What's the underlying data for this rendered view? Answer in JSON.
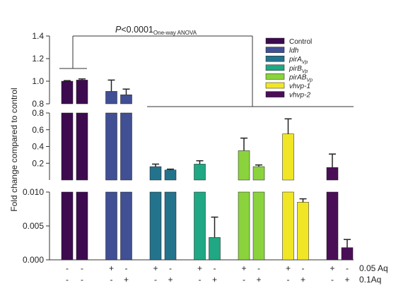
{
  "chart_data": {
    "type": "bar",
    "ylabel": "Fold change compared to control",
    "annotation": {
      "p": "P",
      "rest": "<0.0001",
      "test": "One-way ANOVA"
    },
    "y_axis_segments": [
      {
        "range": [
          0.8,
          1.4
        ],
        "ticks": [
          "0.8",
          "1.0",
          "1.2",
          "1.4"
        ]
      },
      {
        "range": [
          0.0,
          0.8
        ],
        "ticks": [
          "0.2",
          "0.4",
          "0.6",
          "0.8"
        ]
      },
      {
        "range": [
          0.0,
          0.01
        ],
        "ticks": [
          "0.000",
          "0.005",
          "0.010"
        ]
      }
    ],
    "series": [
      {
        "name": "Control",
        "sub": "",
        "color": "#3d0a4f"
      },
      {
        "name": "ldh",
        "sub": "",
        "color": "#414f94"
      },
      {
        "name": "pirA",
        "sub": "Vp",
        "color": "#24738d"
      },
      {
        "name": "pirB",
        "sub": "Vp",
        "color": "#1fa883"
      },
      {
        "name": "pirAB",
        "sub": "Vp",
        "color": "#8ad33d"
      },
      {
        "name": "vhvp-1",
        "sub": "",
        "color": "#f1e625"
      },
      {
        "name": "vhvp-2",
        "sub": "",
        "color": "#4a0e57"
      }
    ],
    "bars": [
      {
        "series": 0,
        "value": 1.0,
        "err": 0.005,
        "aq005": "-",
        "aq01": "-"
      },
      {
        "series": 0,
        "value": 1.01,
        "err": 0.01,
        "aq005": "-",
        "aq01": "-"
      },
      {
        "series": 1,
        "value": 0.91,
        "err": 0.1,
        "aq005": "+",
        "aq01": "-"
      },
      {
        "series": 1,
        "value": 0.88,
        "err": 0.05,
        "aq005": "-",
        "aq01": "+"
      },
      {
        "series": 2,
        "value": 0.16,
        "err": 0.03,
        "aq005": "+",
        "aq01": "-"
      },
      {
        "series": 2,
        "value": 0.12,
        "err": 0.01,
        "aq005": "-",
        "aq01": "+"
      },
      {
        "series": 3,
        "value": 0.19,
        "err": 0.04,
        "aq005": "+",
        "aq01": "-"
      },
      {
        "series": 3,
        "value": 0.0033,
        "err": 0.003,
        "aq005": "-",
        "aq01": "+"
      },
      {
        "series": 4,
        "value": 0.35,
        "err": 0.15,
        "aq005": "+",
        "aq01": "-"
      },
      {
        "series": 4,
        "value": 0.16,
        "err": 0.02,
        "aq005": "-",
        "aq01": "+"
      },
      {
        "series": 5,
        "value": 0.55,
        "err": 0.18,
        "aq005": "+",
        "aq01": "-"
      },
      {
        "series": 5,
        "value": 0.0085,
        "err": 0.0005,
        "aq005": "-",
        "aq01": "+"
      },
      {
        "series": 6,
        "value": 0.15,
        "err": 0.16,
        "aq005": "+",
        "aq01": "-"
      },
      {
        "series": 6,
        "value": 0.0018,
        "err": 0.0012,
        "aq005": "-",
        "aq01": "+"
      }
    ],
    "row_labels": {
      "aq005": "0.05 Aq",
      "aq01": "0.1Aq"
    },
    "legend_position": "top-right",
    "grid": false
  }
}
